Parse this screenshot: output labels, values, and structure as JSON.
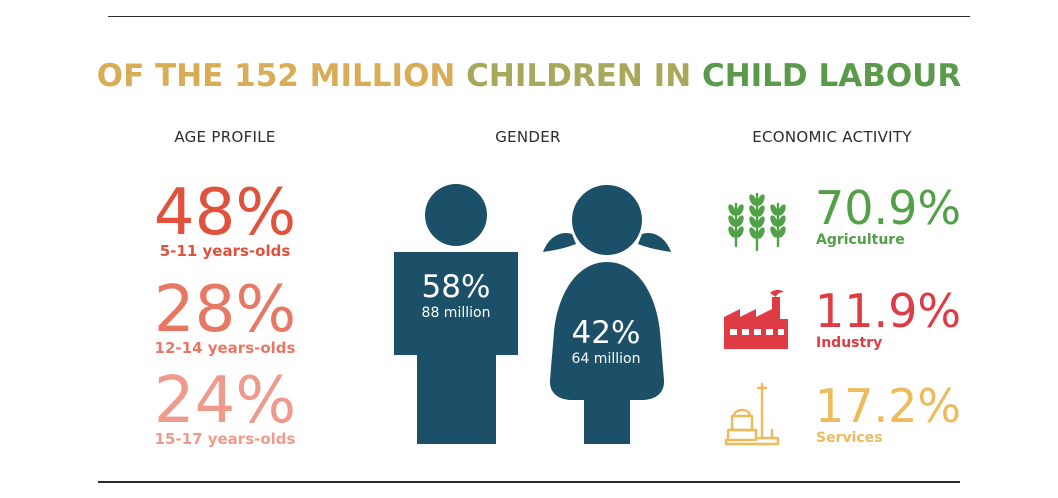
{
  "title": {
    "parts": [
      {
        "text": "OF THE 152 MILLION ",
        "color": "#d9ad58"
      },
      {
        "text": "CHILDREN IN ",
        "color": "#a8a85a"
      },
      {
        "text": "CHILD LABOUR",
        "color": "#5a9a4a"
      }
    ]
  },
  "headers": {
    "age": "AGE PROFILE",
    "gender": "GENDER",
    "economic": "ECONOMIC ACTIVITY"
  },
  "chart_data": [
    {
      "type": "table",
      "title": "AGE PROFILE",
      "categories": [
        "5-11 years-olds",
        "12-14 years-olds",
        "15-17 years-olds"
      ],
      "values": [
        48,
        28,
        24
      ],
      "display": [
        "48%",
        "28%",
        "24%"
      ],
      "colors": [
        "#e0523c",
        "#e87864",
        "#ee9a8c"
      ]
    },
    {
      "type": "table",
      "title": "GENDER",
      "categories": [
        "boys",
        "girls"
      ],
      "values": [
        58,
        42
      ],
      "display": [
        "58%",
        "42%"
      ],
      "labels": [
        "88 million",
        "64 million"
      ],
      "colors": [
        "#1c4f68",
        "#1c4f68"
      ]
    },
    {
      "type": "table",
      "title": "ECONOMIC ACTIVITY",
      "categories": [
        "Agriculture",
        "Industry",
        "Services"
      ],
      "values": [
        70.9,
        11.9,
        17.2
      ],
      "display": [
        "70.9%",
        "11.9%",
        "17.2%"
      ],
      "icons": [
        "wheat-icon",
        "factory-icon",
        "service-icon"
      ],
      "colors": [
        "#52a047",
        "#df3b44",
        "#eeba5a"
      ]
    }
  ]
}
